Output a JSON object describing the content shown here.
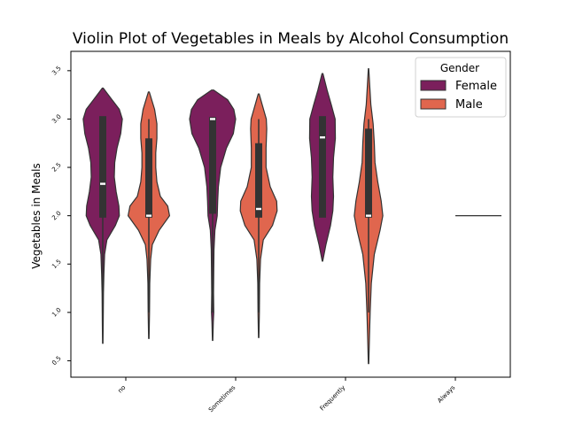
{
  "chart_data": {
    "type": "violin",
    "title": "Violin Plot of Vegetables in Meals by Alcohol Consumption",
    "xlabel": "",
    "ylabel": "Vegetables in Meals",
    "categories": [
      "no",
      "Sometimes",
      "Frequently",
      "Always"
    ],
    "yticks": [
      "0.5",
      "1.0",
      "1.5",
      "2.0",
      "2.5",
      "3.0",
      "3.5"
    ],
    "ylim": [
      0.33,
      3.7
    ],
    "legend": {
      "title": "Gender",
      "position": "top-right"
    },
    "series": [
      {
        "name": "Female",
        "color": "#7b1f5c",
        "groups": [
          {
            "category": "no",
            "min": 0.68,
            "max": 3.32,
            "q1": 1.98,
            "median": 2.33,
            "q3": 3.03,
            "wlo": 1.0,
            "whi": 3.0,
            "density": [
              [
                0.68,
                0.01
              ],
              [
                0.9,
                0.02
              ],
              [
                1.2,
                0.03
              ],
              [
                1.4,
                0.05
              ],
              [
                1.6,
                0.08
              ],
              [
                1.75,
                0.18
              ],
              [
                1.9,
                0.55
              ],
              [
                2.0,
                0.72
              ],
              [
                2.1,
                0.7
              ],
              [
                2.25,
                0.58
              ],
              [
                2.4,
                0.5
              ],
              [
                2.55,
                0.52
              ],
              [
                2.7,
                0.62
              ],
              [
                2.85,
                0.78
              ],
              [
                3.0,
                0.85
              ],
              [
                3.1,
                0.72
              ],
              [
                3.2,
                0.4
              ],
              [
                3.32,
                0.02
              ]
            ]
          },
          {
            "category": "Sometimes",
            "min": 0.71,
            "max": 3.3,
            "q1": 2.02,
            "median": 3.0,
            "q3": 3.02,
            "wlo": 1.0,
            "whi": 3.0,
            "density": [
              [
                0.71,
                0.01
              ],
              [
                0.9,
                0.03
              ],
              [
                1.0,
                0.05
              ],
              [
                1.2,
                0.04
              ],
              [
                1.45,
                0.05
              ],
              [
                1.65,
                0.06
              ],
              [
                1.85,
                0.1
              ],
              [
                2.0,
                0.2
              ],
              [
                2.15,
                0.22
              ],
              [
                2.3,
                0.25
              ],
              [
                2.5,
                0.35
              ],
              [
                2.7,
                0.6
              ],
              [
                2.85,
                0.9
              ],
              [
                3.0,
                1.0
              ],
              [
                3.1,
                0.92
              ],
              [
                3.2,
                0.65
              ],
              [
                3.3,
                0.04
              ]
            ]
          },
          {
            "category": "Frequently",
            "min": 1.53,
            "max": 3.47,
            "q1": 1.98,
            "median": 2.81,
            "q3": 3.03,
            "wlo": 2.0,
            "whi": 3.0,
            "density": [
              [
                1.53,
                0.01
              ],
              [
                1.7,
                0.15
              ],
              [
                1.9,
                0.35
              ],
              [
                2.05,
                0.45
              ],
              [
                2.2,
                0.48
              ],
              [
                2.4,
                0.45
              ],
              [
                2.6,
                0.48
              ],
              [
                2.8,
                0.56
              ],
              [
                3.0,
                0.55
              ],
              [
                3.15,
                0.38
              ],
              [
                3.3,
                0.2
              ],
              [
                3.47,
                0.02
              ]
            ]
          }
        ]
      },
      {
        "name": "Male",
        "color": "#e0664e",
        "groups": [
          {
            "category": "no",
            "min": 0.73,
            "max": 3.28,
            "q1": 1.98,
            "median": 2.0,
            "q3": 2.8,
            "wlo": 1.0,
            "whi": 3.0,
            "density": [
              [
                0.73,
                0.01
              ],
              [
                1.0,
                0.03
              ],
              [
                1.3,
                0.04
              ],
              [
                1.55,
                0.08
              ],
              [
                1.7,
                0.15
              ],
              [
                1.85,
                0.45
              ],
              [
                2.0,
                0.9
              ],
              [
                2.1,
                0.82
              ],
              [
                2.2,
                0.5
              ],
              [
                2.35,
                0.35
              ],
              [
                2.5,
                0.3
              ],
              [
                2.65,
                0.3
              ],
              [
                2.8,
                0.35
              ],
              [
                2.95,
                0.35
              ],
              [
                3.1,
                0.25
              ],
              [
                3.28,
                0.02
              ]
            ]
          },
          {
            "category": "Sometimes",
            "min": 0.74,
            "max": 3.26,
            "q1": 1.98,
            "median": 2.07,
            "q3": 2.75,
            "wlo": 1.0,
            "whi": 3.0,
            "density": [
              [
                0.74,
                0.01
              ],
              [
                1.0,
                0.03
              ],
              [
                1.3,
                0.04
              ],
              [
                1.55,
                0.08
              ],
              [
                1.75,
                0.2
              ],
              [
                1.9,
                0.6
              ],
              [
                2.05,
                0.8
              ],
              [
                2.15,
                0.78
              ],
              [
                2.3,
                0.5
              ],
              [
                2.5,
                0.32
              ],
              [
                2.7,
                0.32
              ],
              [
                2.9,
                0.35
              ],
              [
                3.0,
                0.33
              ],
              [
                3.15,
                0.15
              ],
              [
                3.26,
                0.02
              ]
            ]
          },
          {
            "category": "Frequently",
            "min": 0.47,
            "max": 3.52,
            "q1": 1.98,
            "median": 2.0,
            "q3": 2.9,
            "wlo": 1.0,
            "whi": 3.0,
            "density": [
              [
                0.47,
                0.01
              ],
              [
                0.75,
                0.04
              ],
              [
                1.0,
                0.07
              ],
              [
                1.3,
                0.12
              ],
              [
                1.6,
                0.25
              ],
              [
                1.85,
                0.5
              ],
              [
                2.0,
                0.62
              ],
              [
                2.15,
                0.55
              ],
              [
                2.35,
                0.4
              ],
              [
                2.55,
                0.28
              ],
              [
                2.75,
                0.25
              ],
              [
                2.95,
                0.2
              ],
              [
                3.15,
                0.1
              ],
              [
                3.35,
                0.05
              ],
              [
                3.52,
                0.01
              ]
            ]
          },
          {
            "category": "Always",
            "value": 2.0,
            "flat": true
          }
        ]
      }
    ]
  }
}
